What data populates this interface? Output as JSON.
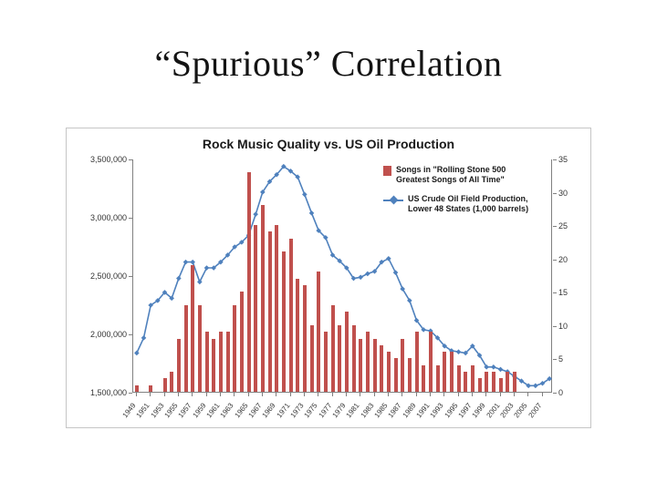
{
  "slide": {
    "title": "“Spurious” Correlation"
  },
  "chart_data": {
    "type": "bar+line",
    "title": "Rock Music Quality vs. US Oil Production",
    "x": [
      1949,
      1950,
      1951,
      1952,
      1953,
      1954,
      1955,
      1956,
      1957,
      1958,
      1959,
      1960,
      1961,
      1962,
      1963,
      1964,
      1965,
      1966,
      1967,
      1968,
      1969,
      1970,
      1971,
      1972,
      1973,
      1974,
      1975,
      1976,
      1977,
      1978,
      1979,
      1980,
      1981,
      1982,
      1983,
      1984,
      1985,
      1986,
      1987,
      1988,
      1989,
      1990,
      1991,
      1992,
      1993,
      1994,
      1995,
      1996,
      1997,
      1998,
      1999,
      2000,
      2001,
      2002,
      2003,
      2004,
      2005,
      2006,
      2007,
      2008
    ],
    "x_tick_step": 2,
    "series": [
      {
        "name": "Songs in \"Rolling Stone 500 Greatest Songs of All Time\"",
        "type": "bar",
        "axis": "right",
        "color": "#c0504d",
        "values": [
          1,
          0,
          1,
          0,
          2,
          3,
          8,
          13,
          19,
          13,
          9,
          8,
          9,
          9,
          13,
          15,
          33,
          25,
          28,
          24,
          25,
          21,
          23,
          17,
          16,
          10,
          18,
          9,
          13,
          10,
          12,
          10,
          8,
          9,
          8,
          7,
          6,
          5,
          8,
          5,
          9,
          4,
          9,
          4,
          6,
          6,
          4,
          3,
          4,
          2,
          3,
          3,
          2,
          3,
          3,
          0,
          0,
          0,
          0,
          0
        ]
      },
      {
        "name": "US Crude Oil Field Production, Lower 48 States (1,000 barrels)",
        "type": "line",
        "axis": "left",
        "color": "#4f81bd",
        "values": [
          1840000,
          1970000,
          2250000,
          2290000,
          2360000,
          2310000,
          2480000,
          2620000,
          2620000,
          2450000,
          2570000,
          2570000,
          2620000,
          2680000,
          2750000,
          2790000,
          2850000,
          3030000,
          3220000,
          3310000,
          3370000,
          3440000,
          3400000,
          3350000,
          3200000,
          3040000,
          2890000,
          2830000,
          2680000,
          2630000,
          2570000,
          2480000,
          2490000,
          2520000,
          2540000,
          2620000,
          2650000,
          2530000,
          2390000,
          2290000,
          2120000,
          2040000,
          2030000,
          1970000,
          1900000,
          1860000,
          1850000,
          1840000,
          1900000,
          1820000,
          1720000,
          1720000,
          1700000,
          1680000,
          1640000,
          1600000,
          1560000,
          1560000,
          1580000,
          1620000
        ]
      }
    ],
    "left_axis": {
      "min": 1500000,
      "max": 3500000,
      "tick_labels": [
        "3,500,000",
        "3,000,000",
        "2,500,000",
        "2,000,000",
        "1,500,000"
      ]
    },
    "right_axis": {
      "min": 0,
      "max": 35,
      "tick_values": [
        35,
        30,
        25,
        20,
        15,
        10,
        5,
        0
      ]
    },
    "grid": "off",
    "legend_position": "top-right",
    "legend": [
      {
        "lines": [
          "Songs in \"Rolling Stone 500",
          "Greatest Songs of All Time\""
        ]
      },
      {
        "lines": [
          "US Crude Oil Field Production,",
          "Lower 48 States (1,000 barrels)"
        ]
      }
    ]
  }
}
